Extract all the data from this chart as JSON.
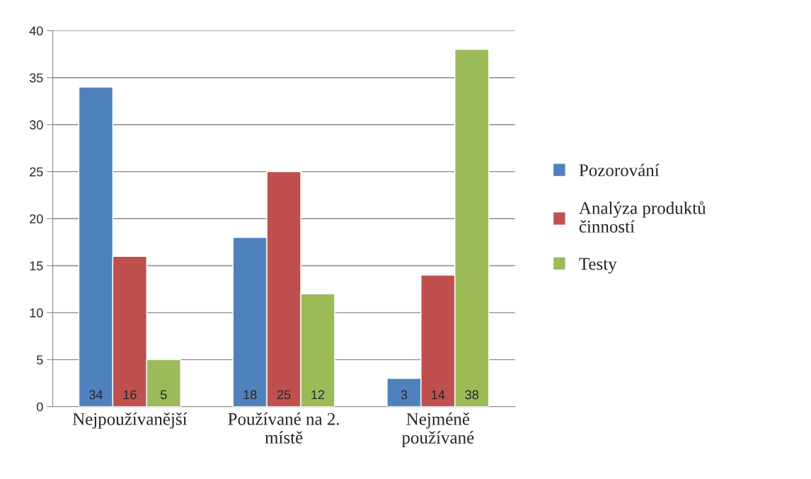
{
  "chart_data": {
    "type": "bar",
    "categories": [
      "Nejpoužívanější",
      "Používané na 2. místě",
      "Nejméně používané"
    ],
    "series": [
      {
        "name": "Pozorování",
        "color": "#4f81bd",
        "values": [
          34,
          18,
          3
        ]
      },
      {
        "name": "Analýza produktů činností",
        "color": "#c0504d",
        "values": [
          16,
          25,
          14
        ]
      },
      {
        "name": "Testy",
        "color": "#9bbb59",
        "values": [
          5,
          12,
          38
        ]
      }
    ],
    "ylim": [
      0,
      40
    ],
    "yticks": [
      0,
      5,
      10,
      15,
      20,
      25,
      30,
      35,
      40
    ],
    "grid": "y",
    "legend": "right",
    "data_labels": true
  }
}
